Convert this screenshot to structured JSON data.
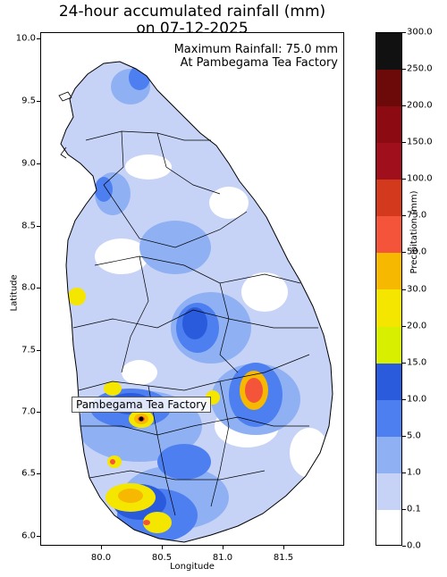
{
  "title_line1": "24-hour accumulated rainfall (mm)",
  "title_line2": "on 07-12-2025",
  "max_rainfall_line1": "Maximum Rainfall: 75.0 mm",
  "max_rainfall_line2": "At Pambegama Tea Factory",
  "station_label": "Pambegama Tea Factory",
  "x_axis": {
    "label": "Longitude",
    "ticks": [
      "80.0",
      "80.5",
      "81.0",
      "81.5"
    ],
    "tick_values": [
      80.0,
      80.5,
      81.0,
      81.5
    ],
    "range": [
      79.5,
      82.0
    ]
  },
  "y_axis": {
    "label": "Latitude",
    "ticks": [
      "10.0",
      "9.5",
      "9.0",
      "8.5",
      "8.0",
      "7.5",
      "7.0",
      "6.5",
      "6.0"
    ],
    "tick_values": [
      10.0,
      9.5,
      9.0,
      8.5,
      8.0,
      7.5,
      7.0,
      6.5,
      6.0
    ],
    "range": [
      5.92,
      10.03
    ]
  },
  "colorbar": {
    "label": "Precipitation (mm)",
    "levels": [
      "0.0",
      "0.1",
      "1.0",
      "5.0",
      "10.0",
      "15.0",
      "20.0",
      "30.0",
      "50.0",
      "75.0",
      "100.0",
      "150.0",
      "200.0",
      "250.0",
      "300.0"
    ],
    "colors": [
      "#ffffff",
      "#c6d3f7",
      "#8fb1f4",
      "#4d7ff0",
      "#2a5bdc",
      "#d8f000",
      "#f5e600",
      "#f6b800",
      "#f4553a",
      "#d33a1d",
      "#a0101c",
      "#8c0a12",
      "#6c0a0a",
      "#111111"
    ]
  },
  "station": {
    "lon": 80.31,
    "lat": 7.04,
    "value": 75.0
  }
}
